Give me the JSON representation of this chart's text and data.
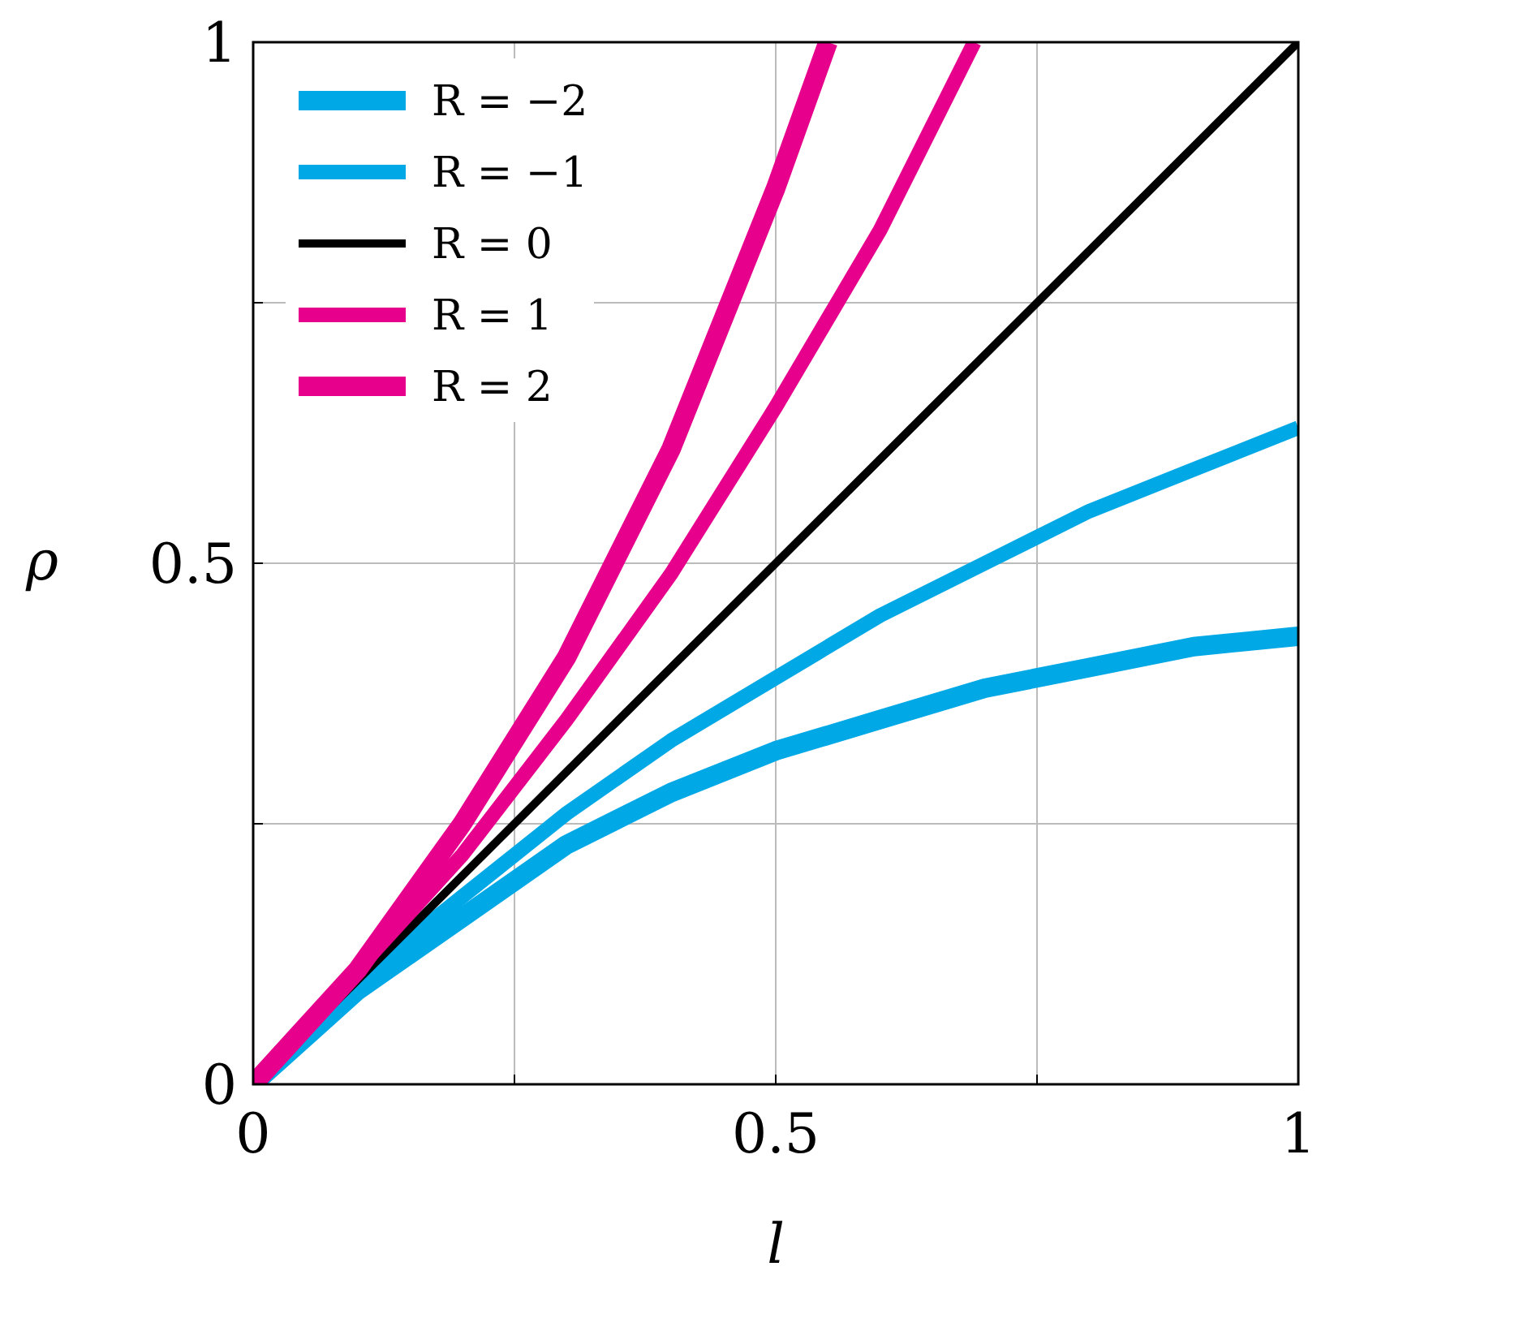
{
  "chart_data": {
    "type": "line",
    "xlabel": "l",
    "ylabel": "ρ",
    "xlim": [
      0,
      1
    ],
    "ylim": [
      0,
      1
    ],
    "xticks": [
      0,
      {
        "value": 0.25,
        "label": null
      },
      0.5,
      {
        "value": 0.75,
        "label": null
      },
      1
    ],
    "yticks": [
      0,
      {
        "value": 0.25,
        "label": null
      },
      0.5,
      {
        "value": 0.75,
        "label": null
      },
      1
    ],
    "grid": true,
    "legend": "top left",
    "line_style": "solid",
    "series": [
      {
        "name": "R = −2",
        "color": "#00a8e6",
        "x": [
          0,
          0.1,
          0.2,
          0.3,
          0.4,
          0.5,
          0.6,
          0.7,
          0.8,
          0.9,
          1
        ],
        "values": [
          0,
          0.09,
          0.16,
          0.23,
          0.28,
          0.32,
          0.35,
          0.38,
          0.4,
          0.42,
          0.43
        ]
      },
      {
        "name": "R = −1",
        "color": "#00a8e6",
        "x": [
          0,
          0.1,
          0.2,
          0.3,
          0.4,
          0.5,
          0.6,
          0.7,
          0.8,
          0.9,
          1
        ],
        "values": [
          0,
          0.1,
          0.18,
          0.26,
          0.33,
          0.39,
          0.45,
          0.5,
          0.55,
          0.59,
          0.63
        ]
      },
      {
        "name": "R = 0",
        "color": "#000000",
        "x": [
          0,
          1
        ],
        "values": [
          0,
          1
        ]
      },
      {
        "name": "R = 1",
        "color": "#e6008c",
        "x": [
          0,
          0.1,
          0.2,
          0.3,
          0.4,
          0.5,
          0.6,
          0.69
        ],
        "values": [
          0,
          0.11,
          0.22,
          0.35,
          0.49,
          0.65,
          0.82,
          1
        ]
      },
      {
        "name": "R = 2",
        "color": "#e6008c",
        "x": [
          0,
          0.1,
          0.2,
          0.3,
          0.4,
          0.5,
          0.55
        ],
        "values": [
          0,
          0.11,
          0.25,
          0.41,
          0.61,
          0.86,
          1
        ]
      }
    ]
  }
}
